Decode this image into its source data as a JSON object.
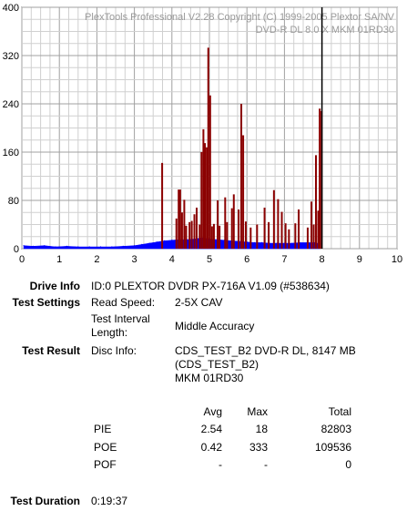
{
  "header": {
    "line1": "PlexTools Professional V2.28 Copyright (C) 1999-2005 Plextor SA/NV",
    "line2": "DVD-R DL   8.0 X    MKM 01RD30"
  },
  "chart_data": {
    "type": "bar",
    "title": "",
    "xlabel": "",
    "ylabel": "",
    "xlim": [
      0,
      10
    ],
    "ylim": [
      0,
      400
    ],
    "x_ticks": [
      "0",
      "1",
      "2",
      "3",
      "4",
      "5",
      "6",
      "7",
      "8",
      "9",
      "10"
    ],
    "y_ticks": [
      "0",
      "80",
      "160",
      "240",
      "320",
      "400"
    ],
    "grid": true,
    "marker_x": 8.0,
    "series": [
      {
        "color": "#0000ff",
        "points": [
          [
            0.05,
            5
          ],
          [
            0.3,
            4
          ],
          [
            0.6,
            5
          ],
          [
            0.9,
            3
          ],
          [
            1.2,
            4
          ],
          [
            1.5,
            3
          ],
          [
            1.8,
            3
          ],
          [
            2.1,
            3
          ],
          [
            2.4,
            3
          ],
          [
            2.7,
            4
          ],
          [
            3.0,
            5
          ],
          [
            3.2,
            7
          ],
          [
            3.4,
            9
          ],
          [
            3.6,
            11
          ],
          [
            3.8,
            13
          ],
          [
            4.0,
            14
          ],
          [
            4.2,
            15
          ],
          [
            4.4,
            15
          ],
          [
            4.6,
            16
          ],
          [
            4.8,
            18
          ],
          [
            5.0,
            16
          ],
          [
            5.2,
            15
          ],
          [
            5.4,
            14
          ],
          [
            5.6,
            13
          ],
          [
            5.8,
            12
          ],
          [
            6.0,
            11
          ],
          [
            6.2,
            10
          ],
          [
            6.4,
            10
          ],
          [
            6.6,
            9
          ],
          [
            6.8,
            9
          ],
          [
            7.0,
            9
          ],
          [
            7.2,
            9
          ],
          [
            7.4,
            10
          ],
          [
            7.6,
            10
          ],
          [
            7.8,
            10
          ],
          [
            7.95,
            8
          ]
        ]
      },
      {
        "color": "#8b0000",
        "points": [
          [
            3.74,
            142
          ],
          [
            4.12,
            50
          ],
          [
            4.18,
            98
          ],
          [
            4.22,
            98
          ],
          [
            4.27,
            60
          ],
          [
            4.33,
            81
          ],
          [
            4.38,
            38
          ],
          [
            4.47,
            44
          ],
          [
            4.53,
            46
          ],
          [
            4.6,
            57
          ],
          [
            4.66,
            68
          ],
          [
            4.74,
            40
          ],
          [
            4.79,
            160
          ],
          [
            4.84,
            198
          ],
          [
            4.88,
            175
          ],
          [
            4.93,
            168
          ],
          [
            4.97,
            333
          ],
          [
            5.02,
            254
          ],
          [
            5.07,
            37
          ],
          [
            5.12,
            41
          ],
          [
            5.22,
            80
          ],
          [
            5.27,
            38
          ],
          [
            5.42,
            85
          ],
          [
            5.47,
            44
          ],
          [
            5.6,
            67
          ],
          [
            5.65,
            90
          ],
          [
            5.78,
            65
          ],
          [
            5.85,
            240
          ],
          [
            5.9,
            188
          ],
          [
            5.97,
            45
          ],
          [
            6.1,
            35
          ],
          [
            6.27,
            40
          ],
          [
            6.47,
            68
          ],
          [
            6.58,
            44
          ],
          [
            6.72,
            97
          ],
          [
            6.83,
            82
          ],
          [
            6.93,
            61
          ],
          [
            7.03,
            42
          ],
          [
            7.12,
            32
          ],
          [
            7.29,
            42
          ],
          [
            7.38,
            65
          ],
          [
            7.62,
            35
          ],
          [
            7.72,
            78
          ],
          [
            7.78,
            40
          ],
          [
            7.84,
            155
          ],
          [
            7.9,
            63
          ],
          [
            7.94,
            232
          ],
          [
            7.99,
            228
          ]
        ]
      }
    ]
  },
  "labels": {
    "drive_info": "Drive Info",
    "test_settings": "Test Settings",
    "test_result": "Test Result",
    "test_duration": "Test Duration"
  },
  "drive_info": "ID:0 PLEXTOR DVDR PX-716A V1.09 (#538634)",
  "settings": {
    "read_speed_label": "Read Speed:",
    "read_speed_value": "2-5X CAV",
    "interval_label_1": "Test Interval",
    "interval_label_2": "Length:",
    "interval_value": "Middle Accuracy"
  },
  "result": {
    "disc_info_label": "Disc Info:",
    "disc_info_line1": "CDS_TEST_B2 DVD-R DL, 8147 MB",
    "disc_info_line2": "(CDS_TEST_B2)",
    "disc_info_line3": "MKM 01RD30"
  },
  "table": {
    "headers": [
      "Avg",
      "Max",
      "Total"
    ],
    "rows": [
      {
        "name": "PIE",
        "avg": "2.54",
        "max": "18",
        "total": "82803"
      },
      {
        "name": "POE",
        "avg": "0.42",
        "max": "333",
        "total": "109536"
      },
      {
        "name": "POF",
        "avg": "-",
        "max": "-",
        "total": "0"
      }
    ]
  },
  "duration": "0:19:37"
}
